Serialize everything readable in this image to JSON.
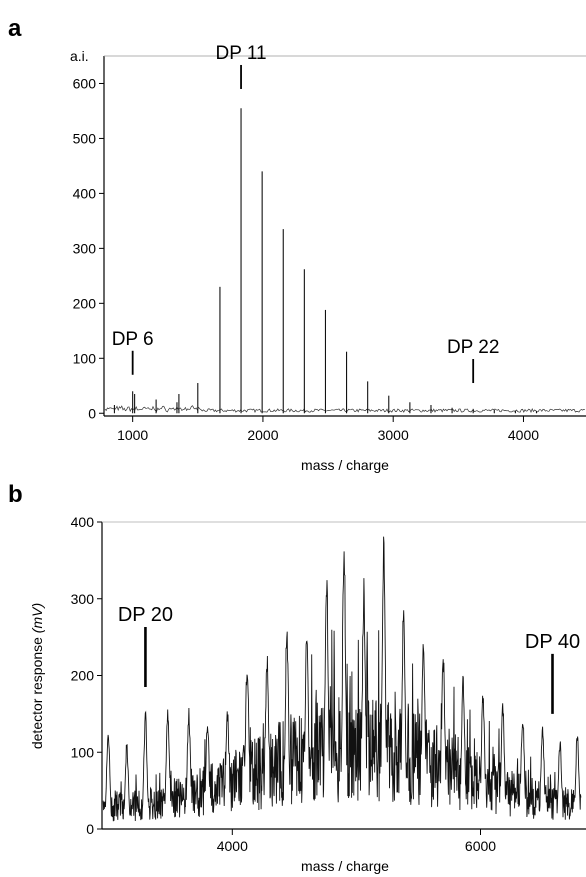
{
  "chart_data": [
    {
      "panel_label": "a",
      "type": "line",
      "xlabel": "mass / charge",
      "ylabel": "a.i.",
      "xlim": [
        780,
        4480
      ],
      "ylim": [
        -5,
        650
      ],
      "xticks": [
        1000,
        2000,
        3000,
        4000
      ],
      "xtick_labels": [
        "1000",
        "2000",
        "3000",
        "4000"
      ],
      "yticks": [
        0,
        100,
        200,
        300,
        400,
        500,
        600
      ],
      "ytick_labels": [
        "0",
        "100",
        "200",
        "300",
        "400",
        "500",
        "600"
      ],
      "grid": false,
      "legend": "none",
      "peaks": {
        "x": [
          860,
          1000,
          1015,
          1180,
          1340,
          1355,
          1500,
          1670,
          1832,
          1994,
          2156,
          2318,
          2480,
          2642,
          2804,
          2966,
          3128,
          3290,
          3452,
          3614,
          3776,
          3938,
          4100
        ],
        "y": [
          15,
          40,
          35,
          25,
          20,
          35,
          55,
          230,
          555,
          440,
          335,
          262,
          188,
          112,
          58,
          32,
          20,
          15,
          10,
          8,
          6,
          5,
          4
        ]
      },
      "annotations": [
        {
          "text": "DP 6",
          "x": 1000,
          "y": 70
        },
        {
          "text": "DP 11",
          "x": 1832,
          "y": 590
        },
        {
          "text": "DP 22",
          "x": 3614,
          "y": 55
        }
      ]
    },
    {
      "panel_label": "b",
      "type": "line",
      "xlabel": "mass / charge",
      "ylabel": "detector response ",
      "ylabel_unit": "(mV)",
      "xlim": [
        2950,
        6850
      ],
      "ylim": [
        0,
        400
      ],
      "xticks": [
        4000,
        6000
      ],
      "xtick_labels": [
        "4000",
        "6000"
      ],
      "yticks": [
        0,
        100,
        200,
        300,
        400
      ],
      "ytick_labels": [
        "0",
        "100",
        "200",
        "300",
        "400"
      ],
      "grid": false,
      "legend": "none",
      "peaks": {
        "x": [
          3000,
          3150,
          3300,
          3480,
          3650,
          3800,
          3960,
          4120,
          4280,
          4440,
          4600,
          4760,
          4900,
          5060,
          5220,
          5380,
          5540,
          5700,
          5860,
          6020,
          6180,
          6340,
          6500,
          6640,
          6780
        ],
        "y": [
          135,
          115,
          155,
          165,
          160,
          150,
          165,
          235,
          240,
          280,
          265,
          345,
          385,
          330,
          395,
          300,
          260,
          240,
          205,
          190,
          170,
          160,
          140,
          120,
          130
        ]
      },
      "annotations": [
        {
          "text": "DP 20",
          "x": 3300,
          "y": 185
        },
        {
          "text": "DP 40",
          "x": 6580,
          "y": 150
        }
      ]
    }
  ]
}
